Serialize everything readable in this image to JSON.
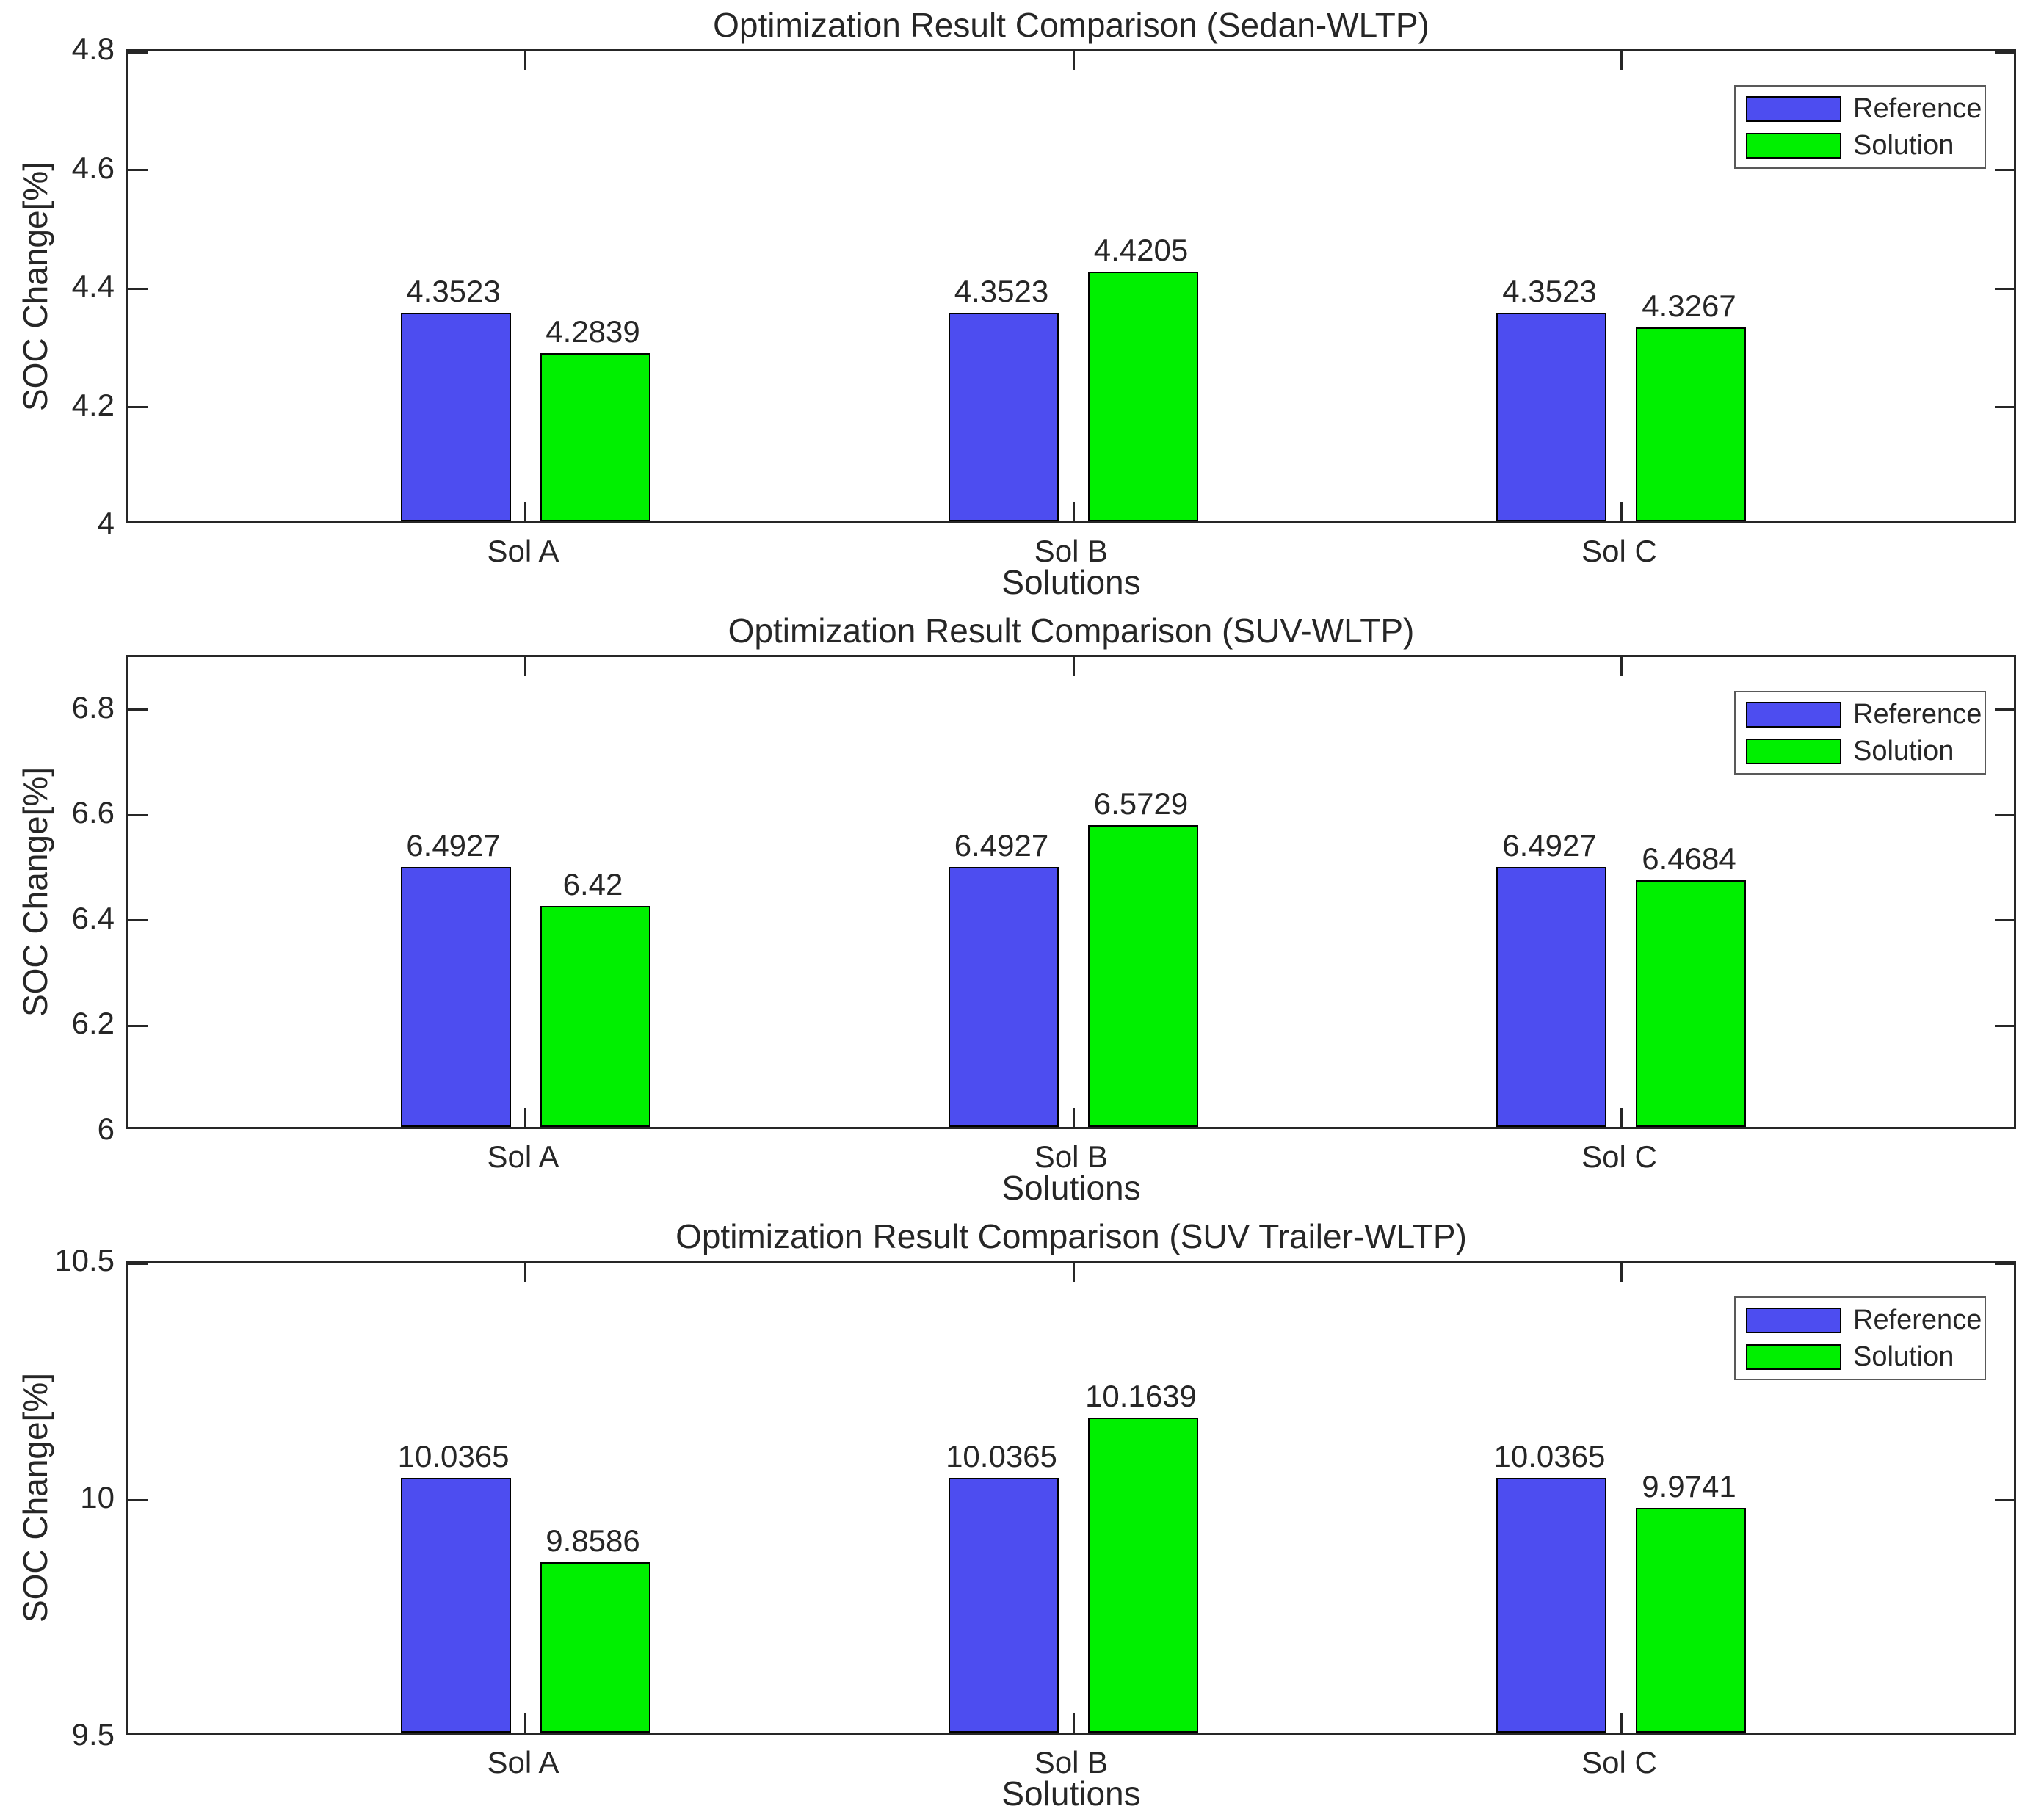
{
  "legend": {
    "position": "northeast",
    "items": [
      {
        "label": "Reference",
        "color": "#4d4df0"
      },
      {
        "label": "Solution",
        "color": "#00f000"
      }
    ]
  },
  "style": {
    "axis_color": "#262626",
    "bar_edge_color": "#000000",
    "reference_color": "#4d4df0",
    "solution_color": "#00f000"
  },
  "chart_data": [
    {
      "type": "bar",
      "title": "Optimization Result Comparison (Sedan-WLTP)",
      "xlabel": "Solutions",
      "ylabel": "SOC Change[%]",
      "categories": [
        "Sol A",
        "Sol B",
        "Sol C"
      ],
      "ylim": [
        4,
        4.8
      ],
      "yticks": [
        4,
        4.2,
        4.4,
        4.6,
        4.8
      ],
      "ytick_labels": [
        "4",
        "4.2",
        "4.4",
        "4.6",
        "4.8"
      ],
      "grid": false,
      "legend_position": "northeast",
      "series": [
        {
          "name": "Reference",
          "color": "#4d4df0",
          "values": [
            4.3523,
            4.3523,
            4.3523
          ],
          "labels": [
            "4.3523",
            "4.3523",
            "4.3523"
          ]
        },
        {
          "name": "Solution",
          "color": "#00f000",
          "values": [
            4.2839,
            4.4205,
            4.3267
          ],
          "labels": [
            "4.2839",
            "4.4205",
            "4.3267"
          ]
        }
      ]
    },
    {
      "type": "bar",
      "title": "Optimization Result Comparison (SUV-WLTP)",
      "xlabel": "Solutions",
      "ylabel": "SOC Change[%]",
      "categories": [
        "Sol A",
        "Sol B",
        "Sol C"
      ],
      "ylim": [
        6,
        6.9
      ],
      "yticks": [
        6,
        6.2,
        6.4,
        6.6,
        6.8
      ],
      "ytick_labels": [
        "6",
        "6.2",
        "6.4",
        "6.6",
        "6.8"
      ],
      "grid": false,
      "legend_position": "northeast",
      "series": [
        {
          "name": "Reference",
          "color": "#4d4df0",
          "values": [
            6.4927,
            6.4927,
            6.4927
          ],
          "labels": [
            "6.4927",
            "6.4927",
            "6.4927"
          ]
        },
        {
          "name": "Solution",
          "color": "#00f000",
          "values": [
            6.42,
            6.5729,
            6.4684
          ],
          "labels": [
            "6.42",
            "6.5729",
            "6.4684"
          ]
        }
      ]
    },
    {
      "type": "bar",
      "title": "Optimization Result Comparison (SUV Trailer-WLTP)",
      "xlabel": "Solutions",
      "ylabel": "SOC Change[%]",
      "categories": [
        "Sol A",
        "Sol B",
        "Sol C"
      ],
      "ylim": [
        9.5,
        10.5
      ],
      "yticks": [
        9.5,
        10,
        10.5
      ],
      "ytick_labels": [
        "9.5",
        "10",
        "10.5"
      ],
      "grid": false,
      "legend_position": "northeast",
      "series": [
        {
          "name": "Reference",
          "color": "#4d4df0",
          "values": [
            10.0365,
            10.0365,
            10.0365
          ],
          "labels": [
            "10.0365",
            "10.0365",
            "10.0365"
          ]
        },
        {
          "name": "Solution",
          "color": "#00f000",
          "values": [
            9.8586,
            10.1639,
            9.9741
          ],
          "labels": [
            "9.8586",
            "10.1639",
            "9.9741"
          ]
        }
      ]
    }
  ]
}
